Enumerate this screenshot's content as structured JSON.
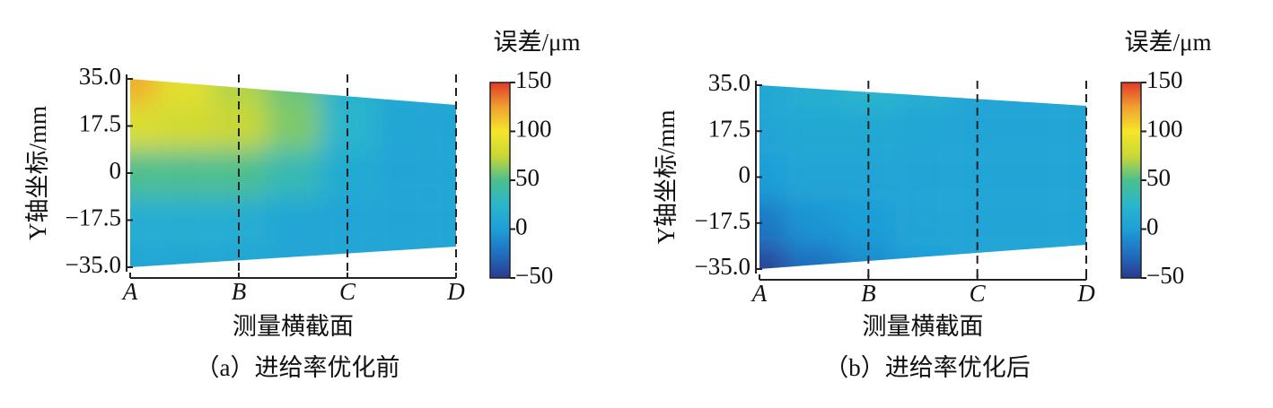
{
  "chart_data": [
    {
      "type": "heatmap",
      "caption": "（a）进给率优化前",
      "xlabel": "测量横截面",
      "ylabel": "Y轴坐标/mm",
      "x": [
        "A",
        null,
        "B",
        null,
        "C",
        null,
        "D"
      ],
      "y": [
        35,
        17.5,
        0,
        -17.5,
        -35
      ],
      "z": [
        [
          120,
          90,
          70,
          55,
          20,
          10,
          8
        ],
        [
          85,
          80,
          75,
          60,
          25,
          8,
          6
        ],
        [
          50,
          50,
          50,
          35,
          12,
          6,
          6
        ],
        [
          15,
          15,
          15,
          8,
          6,
          6,
          6
        ],
        [
          8,
          8,
          8,
          6,
          6,
          6,
          6
        ]
      ],
      "ylim": [
        -35,
        35
      ],
      "yticks": [
        {
          "value": 35,
          "label": "35.0"
        },
        17.5,
        0,
        {
          "value": -17.5,
          "label": "−17.5"
        },
        {
          "value": -35,
          "label": "−35.0"
        }
      ],
      "colorbar": {
        "label": "误差/μm",
        "clim": [
          -50,
          150
        ],
        "ticks": [
          {
            "value": -50,
            "label": "−50"
          },
          0,
          50,
          100,
          150
        ],
        "colormap": [
          "#2b3990",
          "#1f6fc0",
          "#1e9fd8",
          "#2ab6cc",
          "#4dbf8e",
          "#c9d835",
          "#f5e62a",
          "#f0a030",
          "#e03a26"
        ]
      }
    },
    {
      "type": "heatmap",
      "caption": "（b）进给率优化后",
      "xlabel": "测量横截面",
      "ylabel": "Y轴坐标/mm",
      "x": [
        "A",
        null,
        "B",
        null,
        "C",
        null,
        "D"
      ],
      "y": [
        35,
        17.5,
        0,
        -17.5,
        -35
      ],
      "z": [
        [
          10,
          15,
          25,
          15,
          8,
          5,
          5
        ],
        [
          5,
          10,
          10,
          8,
          5,
          5,
          5
        ],
        [
          0,
          5,
          5,
          5,
          5,
          5,
          5
        ],
        [
          -20,
          -5,
          0,
          5,
          5,
          5,
          5
        ],
        [
          -45,
          -25,
          -10,
          0,
          5,
          5,
          5
        ]
      ],
      "ylim": [
        -35,
        35
      ],
      "yticks": [
        {
          "value": 35,
          "label": "35.0"
        },
        17.5,
        0,
        {
          "value": -17.5,
          "label": "−17.5"
        },
        {
          "value": -35,
          "label": "−35.0"
        }
      ],
      "colorbar": {
        "label": "误差/μm",
        "clim": [
          -50,
          150
        ],
        "ticks": [
          {
            "value": -50,
            "label": "−50"
          },
          0,
          50,
          100,
          150
        ],
        "colormap": [
          "#2b3990",
          "#1f6fc0",
          "#1e9fd8",
          "#2ab6cc",
          "#4dbf8e",
          "#c9d835",
          "#f5e62a",
          "#f0a030",
          "#e03a26"
        ]
      }
    }
  ]
}
